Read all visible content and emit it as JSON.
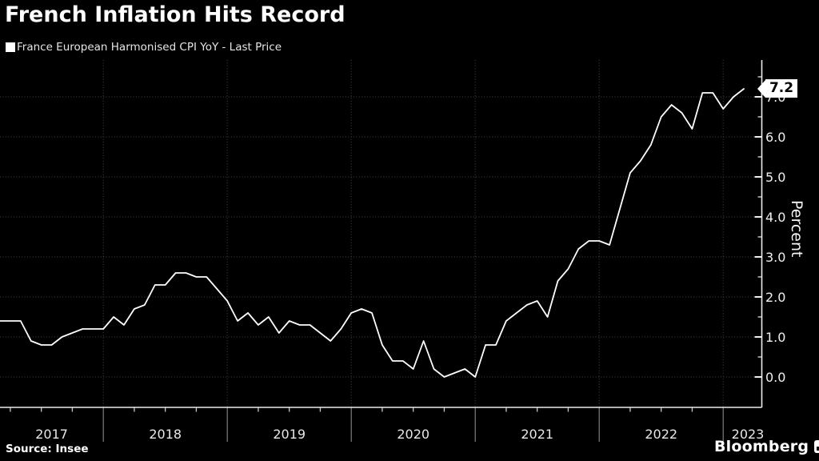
{
  "header": {
    "title": "French Inflation Hits Record"
  },
  "legend": {
    "label": "France European Harmonised CPI YoY - Last Price",
    "swatch_color": "#ffffff"
  },
  "chart_data": {
    "type": "line",
    "title": "French Inflation Hits Record",
    "series_name": "France European Harmonised CPI YoY - Last Price",
    "ylabel": "Percent",
    "ylim": [
      0,
      7
    ],
    "y_ticks": [
      "0.0",
      "1.0",
      "2.0",
      "3.0",
      "4.0",
      "5.0",
      "6.0",
      "7.0"
    ],
    "y_minor_step": 0.5,
    "grid": "dotted",
    "line_color": "#ffffff",
    "background": "#000000",
    "last_price": "7.2",
    "x_tick_years": [
      "2017",
      "2018",
      "2019",
      "2020",
      "2021",
      "2022",
      "2023"
    ],
    "x": [
      "2017-02",
      "2017-03",
      "2017-04",
      "2017-05",
      "2017-06",
      "2017-07",
      "2017-08",
      "2017-09",
      "2017-10",
      "2017-11",
      "2017-12",
      "2018-01",
      "2018-02",
      "2018-03",
      "2018-04",
      "2018-05",
      "2018-06",
      "2018-07",
      "2018-08",
      "2018-09",
      "2018-10",
      "2018-11",
      "2018-12",
      "2019-01",
      "2019-02",
      "2019-03",
      "2019-04",
      "2019-05",
      "2019-06",
      "2019-07",
      "2019-08",
      "2019-09",
      "2019-10",
      "2019-11",
      "2019-12",
      "2020-01",
      "2020-02",
      "2020-03",
      "2020-04",
      "2020-05",
      "2020-06",
      "2020-07",
      "2020-08",
      "2020-09",
      "2020-10",
      "2020-11",
      "2020-12",
      "2021-01",
      "2021-02",
      "2021-03",
      "2021-04",
      "2021-05",
      "2021-06",
      "2021-07",
      "2021-08",
      "2021-09",
      "2021-10",
      "2021-11",
      "2021-12",
      "2022-01",
      "2022-02",
      "2022-03",
      "2022-04",
      "2022-05",
      "2022-06",
      "2022-07",
      "2022-08",
      "2022-09",
      "2022-10",
      "2022-11",
      "2022-12",
      "2023-01",
      "2023-02"
    ],
    "values": [
      1.4,
      1.4,
      1.4,
      0.9,
      0.8,
      0.8,
      1.0,
      1.1,
      1.2,
      1.2,
      1.2,
      1.5,
      1.3,
      1.7,
      1.8,
      2.3,
      2.3,
      2.6,
      2.6,
      2.5,
      2.5,
      2.2,
      1.9,
      1.4,
      1.6,
      1.3,
      1.5,
      1.1,
      1.4,
      1.3,
      1.3,
      1.1,
      0.9,
      1.2,
      1.6,
      1.7,
      1.6,
      0.8,
      0.4,
      0.4,
      0.2,
      0.9,
      0.2,
      0.0,
      0.1,
      0.2,
      0.0,
      0.8,
      0.8,
      1.4,
      1.6,
      1.8,
      1.9,
      1.5,
      2.4,
      2.7,
      3.2,
      3.4,
      3.4,
      3.3,
      4.2,
      5.1,
      5.4,
      5.8,
      6.5,
      6.8,
      6.6,
      6.2,
      7.1,
      7.1,
      6.7,
      7.0,
      7.2
    ]
  },
  "footer": {
    "source": "Source: Insee",
    "brand": "Bloomberg"
  }
}
